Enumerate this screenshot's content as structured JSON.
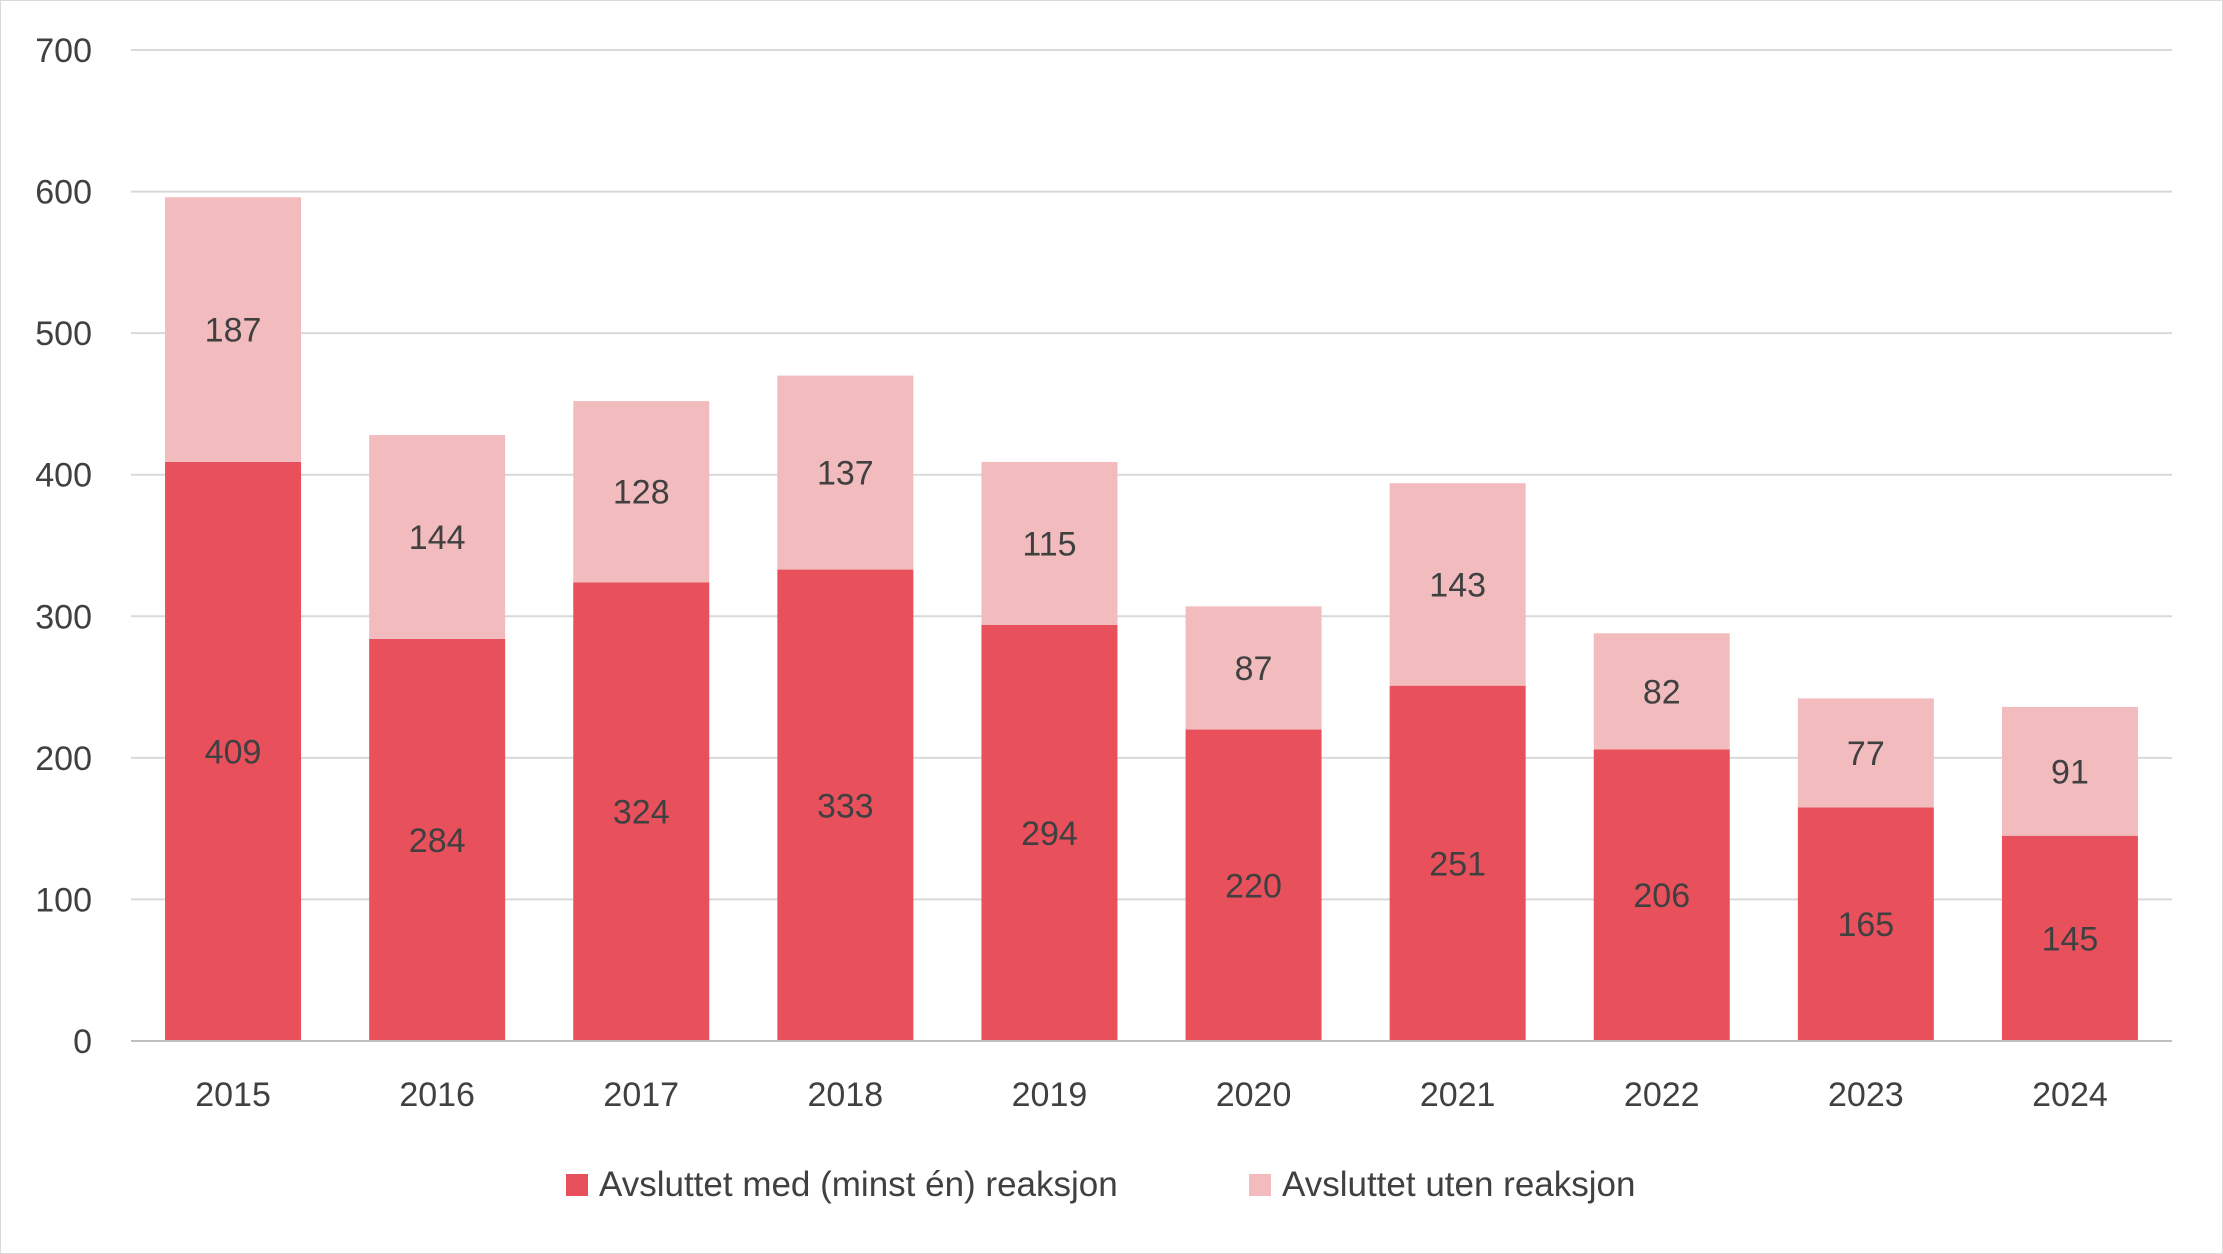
{
  "chart_data": {
    "type": "bar",
    "stacked": true,
    "title": "",
    "xlabel": "",
    "ylabel": "",
    "categories": [
      "2015",
      "2016",
      "2017",
      "2018",
      "2019",
      "2020",
      "2021",
      "2022",
      "2023",
      "2024"
    ],
    "series": [
      {
        "name": "Avsluttet med (minst én) reaksjon",
        "color": "#E8505B",
        "values": [
          409,
          284,
          324,
          333,
          294,
          220,
          251,
          206,
          165,
          145
        ]
      },
      {
        "name": "Avsluttet uten reaksjon",
        "color": "#F2BCBF",
        "values": [
          187,
          144,
          128,
          137,
          115,
          87,
          143,
          82,
          77,
          91
        ]
      }
    ],
    "ylim": [
      0,
      700
    ],
    "yticks": [
      0,
      100,
      200,
      300,
      400,
      500,
      600,
      700
    ],
    "grid": true,
    "legend_position": "bottom"
  }
}
